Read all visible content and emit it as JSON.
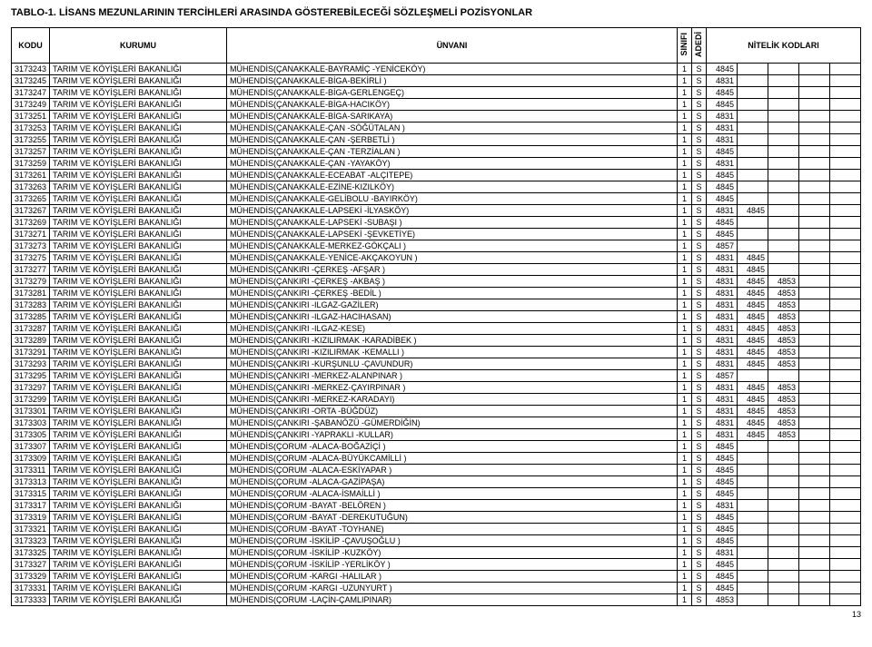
{
  "title": "TABLO-1. LİSANS MEZUNLARININ TERCİHLERİ ARASINDA GÖSTEREBİLECEĞİ SÖZLEŞMELİ POZİSYONLAR",
  "headers": {
    "kodu": "KODU",
    "kurumu": "KURUMU",
    "unvani": "ÜNVANI",
    "sinifi": "SINIFI",
    "adedi": "ADEDİ",
    "nitelik": "NİTELİK KODLARI"
  },
  "kurum": "TARIM VE KÖYİŞLERİ BAKANLIĞI",
  "rows": [
    {
      "k": "3173243",
      "u": "MÜHENDİS(ÇANAKKALE-BAYRAMİÇ -YENİCEKÖY)",
      "s": "1",
      "a": "S",
      "n": [
        "4845",
        "",
        "",
        "",
        ""
      ]
    },
    {
      "k": "3173245",
      "u": "MÜHENDİS(ÇANAKKALE-BİGA-BEKİRLİ )",
      "s": "1",
      "a": "S",
      "n": [
        "4831",
        "",
        "",
        "",
        ""
      ]
    },
    {
      "k": "3173247",
      "u": "MÜHENDİS(ÇANAKKALE-BİGA-GERLENGEÇ)",
      "s": "1",
      "a": "S",
      "n": [
        "4845",
        "",
        "",
        "",
        ""
      ]
    },
    {
      "k": "3173249",
      "u": "MÜHENDİS(ÇANAKKALE-BİGA-HACIKÖY)",
      "s": "1",
      "a": "S",
      "n": [
        "4845",
        "",
        "",
        "",
        ""
      ]
    },
    {
      "k": "3173251",
      "u": "MÜHENDİS(ÇANAKKALE-BİGA-SARIKAYA)",
      "s": "1",
      "a": "S",
      "n": [
        "4831",
        "",
        "",
        "",
        ""
      ]
    },
    {
      "k": "3173253",
      "u": "MÜHENDİS(ÇANAKKALE-ÇAN -SÖĞÜTALAN )",
      "s": "1",
      "a": "S",
      "n": [
        "4831",
        "",
        "",
        "",
        ""
      ]
    },
    {
      "k": "3173255",
      "u": "MÜHENDİS(ÇANAKKALE-ÇAN -ŞERBETLİ )",
      "s": "1",
      "a": "S",
      "n": [
        "4831",
        "",
        "",
        "",
        ""
      ]
    },
    {
      "k": "3173257",
      "u": "MÜHENDİS(ÇANAKKALE-ÇAN -TERZİALAN )",
      "s": "1",
      "a": "S",
      "n": [
        "4845",
        "",
        "",
        "",
        ""
      ]
    },
    {
      "k": "3173259",
      "u": "MÜHENDİS(ÇANAKKALE-ÇAN -YAYAKÖY)",
      "s": "1",
      "a": "S",
      "n": [
        "4831",
        "",
        "",
        "",
        ""
      ]
    },
    {
      "k": "3173261",
      "u": "MÜHENDİS(ÇANAKKALE-ECEABAT -ALÇITEPE)",
      "s": "1",
      "a": "S",
      "n": [
        "4845",
        "",
        "",
        "",
        ""
      ]
    },
    {
      "k": "3173263",
      "u": "MÜHENDİS(ÇANAKKALE-EZİNE-KIZILKÖY)",
      "s": "1",
      "a": "S",
      "n": [
        "4845",
        "",
        "",
        "",
        ""
      ]
    },
    {
      "k": "3173265",
      "u": "MÜHENDİS(ÇANAKKALE-GELİBOLU -BAYIRKÖY)",
      "s": "1",
      "a": "S",
      "n": [
        "4845",
        "",
        "",
        "",
        ""
      ]
    },
    {
      "k": "3173267",
      "u": "MÜHENDİS(ÇANAKKALE-LAPSEKİ -İLYASKÖY)",
      "s": "1",
      "a": "S",
      "n": [
        "4831",
        "4845",
        "",
        "",
        ""
      ]
    },
    {
      "k": "3173269",
      "u": "MÜHENDİS(ÇANAKKALE-LAPSEKİ -SUBAŞI )",
      "s": "1",
      "a": "S",
      "n": [
        "4845",
        "",
        "",
        "",
        ""
      ]
    },
    {
      "k": "3173271",
      "u": "MÜHENDİS(ÇANAKKALE-LAPSEKİ -ŞEVKETİYE)",
      "s": "1",
      "a": "S",
      "n": [
        "4845",
        "",
        "",
        "",
        ""
      ]
    },
    {
      "k": "3173273",
      "u": "MÜHENDİS(ÇANAKKALE-MERKEZ-GÖKÇALI )",
      "s": "1",
      "a": "S",
      "n": [
        "4857",
        "",
        "",
        "",
        ""
      ]
    },
    {
      "k": "3173275",
      "u": "MÜHENDİS(ÇANAKKALE-YENİCE-AKÇAKOYUN )",
      "s": "1",
      "a": "S",
      "n": [
        "4831",
        "4845",
        "",
        "",
        ""
      ]
    },
    {
      "k": "3173277",
      "u": "MÜHENDİS(ÇANKIRI -ÇERKEŞ -AFŞAR )",
      "s": "1",
      "a": "S",
      "n": [
        "4831",
        "4845",
        "",
        "",
        ""
      ]
    },
    {
      "k": "3173279",
      "u": "MÜHENDİS(ÇANKIRI -ÇERKEŞ -AKBAŞ )",
      "s": "1",
      "a": "S",
      "n": [
        "4831",
        "4845",
        "4853",
        "",
        ""
      ]
    },
    {
      "k": "3173281",
      "u": "MÜHENDİS(ÇANKIRI -ÇERKEŞ -BEDİL )",
      "s": "1",
      "a": "S",
      "n": [
        "4831",
        "4845",
        "4853",
        "",
        ""
      ]
    },
    {
      "k": "3173283",
      "u": "MÜHENDİS(ÇANKIRI -ILGAZ-GAZİLER)",
      "s": "1",
      "a": "S",
      "n": [
        "4831",
        "4845",
        "4853",
        "",
        ""
      ]
    },
    {
      "k": "3173285",
      "u": "MÜHENDİS(ÇANKIRI -ILGAZ-HACIHASAN)",
      "s": "1",
      "a": "S",
      "n": [
        "4831",
        "4845",
        "4853",
        "",
        ""
      ]
    },
    {
      "k": "3173287",
      "u": "MÜHENDİS(ÇANKIRI -ILGAZ-KESE)",
      "s": "1",
      "a": "S",
      "n": [
        "4831",
        "4845",
        "4853",
        "",
        ""
      ]
    },
    {
      "k": "3173289",
      "u": "MÜHENDİS(ÇANKIRI -KIZILIRMAK -KARADİBEK )",
      "s": "1",
      "a": "S",
      "n": [
        "4831",
        "4845",
        "4853",
        "",
        ""
      ]
    },
    {
      "k": "3173291",
      "u": "MÜHENDİS(ÇANKIRI -KIZILIRMAK -KEMALLI )",
      "s": "1",
      "a": "S",
      "n": [
        "4831",
        "4845",
        "4853",
        "",
        ""
      ]
    },
    {
      "k": "3173293",
      "u": "MÜHENDİS(ÇANKIRI -KURŞUNLU -ÇAVUNDUR)",
      "s": "1",
      "a": "S",
      "n": [
        "4831",
        "4845",
        "4853",
        "",
        ""
      ]
    },
    {
      "k": "3173295",
      "u": "MÜHENDİS(ÇANKIRI -MERKEZ-ALANPINAR )",
      "s": "1",
      "a": "S",
      "n": [
        "4857",
        "",
        "",
        "",
        ""
      ]
    },
    {
      "k": "3173297",
      "u": "MÜHENDİS(ÇANKIRI -MERKEZ-ÇAYIRPINAR )",
      "s": "1",
      "a": "S",
      "n": [
        "4831",
        "4845",
        "4853",
        "",
        ""
      ]
    },
    {
      "k": "3173299",
      "u": "MÜHENDİS(ÇANKIRI -MERKEZ-KARADAYI)",
      "s": "1",
      "a": "S",
      "n": [
        "4831",
        "4845",
        "4853",
        "",
        ""
      ]
    },
    {
      "k": "3173301",
      "u": "MÜHENDİS(ÇANKIRI -ORTA -BÜĞDÜZ)",
      "s": "1",
      "a": "S",
      "n": [
        "4831",
        "4845",
        "4853",
        "",
        ""
      ]
    },
    {
      "k": "3173303",
      "u": "MÜHENDİS(ÇANKIRI -ŞABANÖZÜ -GÜMERDİĞİN)",
      "s": "1",
      "a": "S",
      "n": [
        "4831",
        "4845",
        "4853",
        "",
        ""
      ]
    },
    {
      "k": "3173305",
      "u": "MÜHENDİS(ÇANKIRI -YAPRAKLI -KULLAR)",
      "s": "1",
      "a": "S",
      "n": [
        "4831",
        "4845",
        "4853",
        "",
        ""
      ]
    },
    {
      "k": "3173307",
      "u": "MÜHENDİS(ÇORUM -ALACA-BOĞAZİÇİ )",
      "s": "1",
      "a": "S",
      "n": [
        "4845",
        "",
        "",
        "",
        ""
      ]
    },
    {
      "k": "3173309",
      "u": "MÜHENDİS(ÇORUM -ALACA-BÜYÜKCAMİLLİ )",
      "s": "1",
      "a": "S",
      "n": [
        "4845",
        "",
        "",
        "",
        ""
      ]
    },
    {
      "k": "3173311",
      "u": "MÜHENDİS(ÇORUM -ALACA-ESKİYAPAR )",
      "s": "1",
      "a": "S",
      "n": [
        "4845",
        "",
        "",
        "",
        ""
      ]
    },
    {
      "k": "3173313",
      "u": "MÜHENDİS(ÇORUM -ALACA-GAZİPAŞA)",
      "s": "1",
      "a": "S",
      "n": [
        "4845",
        "",
        "",
        "",
        ""
      ]
    },
    {
      "k": "3173315",
      "u": "MÜHENDİS(ÇORUM -ALACA-İSMAİLLİ )",
      "s": "1",
      "a": "S",
      "n": [
        "4845",
        "",
        "",
        "",
        ""
      ]
    },
    {
      "k": "3173317",
      "u": "MÜHENDİS(ÇORUM -BAYAT -BELÖREN )",
      "s": "1",
      "a": "S",
      "n": [
        "4831",
        "",
        "",
        "",
        ""
      ]
    },
    {
      "k": "3173319",
      "u": "MÜHENDİS(ÇORUM -BAYAT -DEREKUTUĞUN)",
      "s": "1",
      "a": "S",
      "n": [
        "4845",
        "",
        "",
        "",
        ""
      ]
    },
    {
      "k": "3173321",
      "u": "MÜHENDİS(ÇORUM -BAYAT -TOYHANE)",
      "s": "1",
      "a": "S",
      "n": [
        "4845",
        "",
        "",
        "",
        ""
      ]
    },
    {
      "k": "3173323",
      "u": "MÜHENDİS(ÇORUM -İSKİLİP -ÇAVUŞOĞLU )",
      "s": "1",
      "a": "S",
      "n": [
        "4845",
        "",
        "",
        "",
        ""
      ]
    },
    {
      "k": "3173325",
      "u": "MÜHENDİS(ÇORUM -İSKİLİP -KUZKÖY)",
      "s": "1",
      "a": "S",
      "n": [
        "4831",
        "",
        "",
        "",
        ""
      ]
    },
    {
      "k": "3173327",
      "u": "MÜHENDİS(ÇORUM -İSKİLİP -YERLİKÖY )",
      "s": "1",
      "a": "S",
      "n": [
        "4845",
        "",
        "",
        "",
        ""
      ]
    },
    {
      "k": "3173329",
      "u": "MÜHENDİS(ÇORUM -KARGI -HALILAR )",
      "s": "1",
      "a": "S",
      "n": [
        "4845",
        "",
        "",
        "",
        ""
      ]
    },
    {
      "k": "3173331",
      "u": "MÜHENDİS(ÇORUM -KARGI -UZUNYURT )",
      "s": "1",
      "a": "S",
      "n": [
        "4845",
        "",
        "",
        "",
        ""
      ]
    },
    {
      "k": "3173333",
      "u": "MÜHENDİS(ÇORUM -LAÇİN-ÇAMLIPINAR)",
      "s": "1",
      "a": "S",
      "n": [
        "4853",
        "",
        "",
        "",
        ""
      ]
    }
  ],
  "pageNum": "13"
}
